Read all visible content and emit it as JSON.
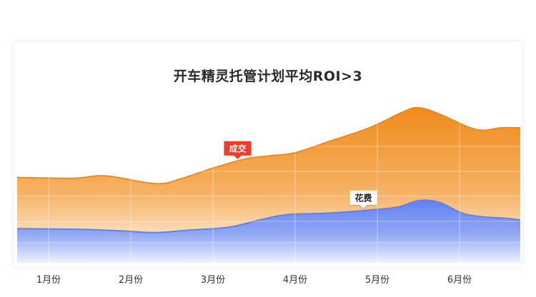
{
  "title": "开车精灵托管计划平均ROI>3",
  "chart_data": {
    "type": "area",
    "title": "开车精灵托管计划平均ROI>3",
    "categories": [
      "1月份",
      "2月份",
      "3月份",
      "4月份",
      "5月份",
      "6月份"
    ],
    "grid": true,
    "series": [
      {
        "name": "成交",
        "color": "#f08a1c",
        "x": [
          0.0,
          0.3,
          0.7,
          1.3,
          1.6,
          2.0,
          2.4,
          2.7,
          3.0,
          3.4,
          3.9,
          4.3,
          4.5,
          4.75,
          5.2,
          5.5,
          5.95
        ],
        "values": [
          55,
          54.5,
          56,
          51,
          54,
          61,
          67,
          69,
          71,
          78,
          87,
          97,
          100,
          96,
          86,
          87,
          87
        ]
      },
      {
        "name": "花费",
        "color": "#5f81f3",
        "x": [
          0.0,
          0.4,
          0.9,
          1.3,
          1.7,
          2.2,
          2.6,
          2.9,
          3.4,
          3.9,
          4.25,
          4.5,
          4.75,
          5.1,
          5.6,
          5.95
        ],
        "values": [
          22,
          21.5,
          20.5,
          19.5,
          21,
          23,
          28,
          31,
          32,
          34,
          36,
          40,
          39,
          31,
          28.5,
          27.5
        ]
      }
    ],
    "annotations": [
      {
        "text": "成交",
        "series": "成交",
        "x": 2.3,
        "bg": "#ee3b2b",
        "color": "#ffffff"
      },
      {
        "text": "花费",
        "series": "花费",
        "x": 3.83,
        "bg": "#ffffff",
        "color": "#222222"
      }
    ]
  }
}
